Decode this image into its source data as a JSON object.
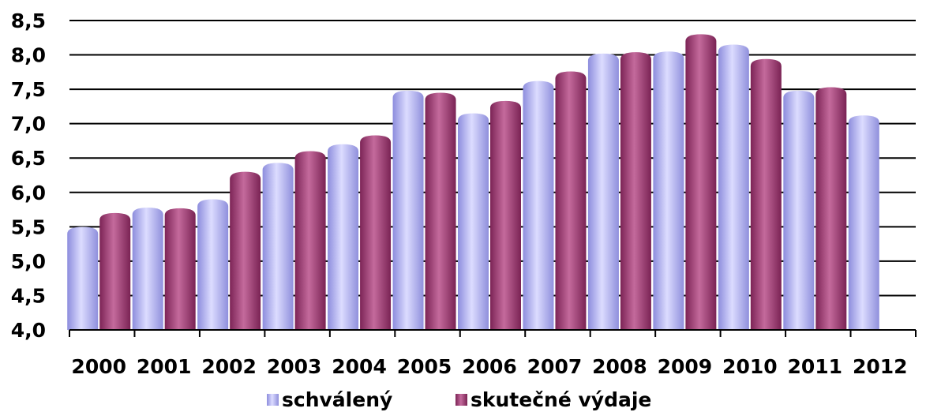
{
  "chart_data": {
    "type": "bar",
    "categories": [
      "2000",
      "2001",
      "2002",
      "2003",
      "2004",
      "2005",
      "2006",
      "2007",
      "2008",
      "2009",
      "2010",
      "2011",
      "2012"
    ],
    "series": [
      {
        "name": "schválený",
        "color": "#b4b4f2",
        "values": [
          5.5,
          5.78,
          5.9,
          6.43,
          6.7,
          7.48,
          7.15,
          7.62,
          8.02,
          8.05,
          8.15,
          7.48,
          7.12
        ]
      },
      {
        "name": "skutečné výdaje",
        "color": "#a8437a",
        "values": [
          5.7,
          5.77,
          6.3,
          6.6,
          6.83,
          7.45,
          7.33,
          7.76,
          8.04,
          8.3,
          7.94,
          7.53,
          null
        ]
      }
    ],
    "ylim": [
      4.0,
      8.5
    ],
    "yticks": [
      "4,0",
      "4,5",
      "5,0",
      "5,5",
      "6,0",
      "6,5",
      "7,0",
      "7,5",
      "8,0",
      "8,5"
    ],
    "grid": true,
    "legend_position": "bottom"
  }
}
